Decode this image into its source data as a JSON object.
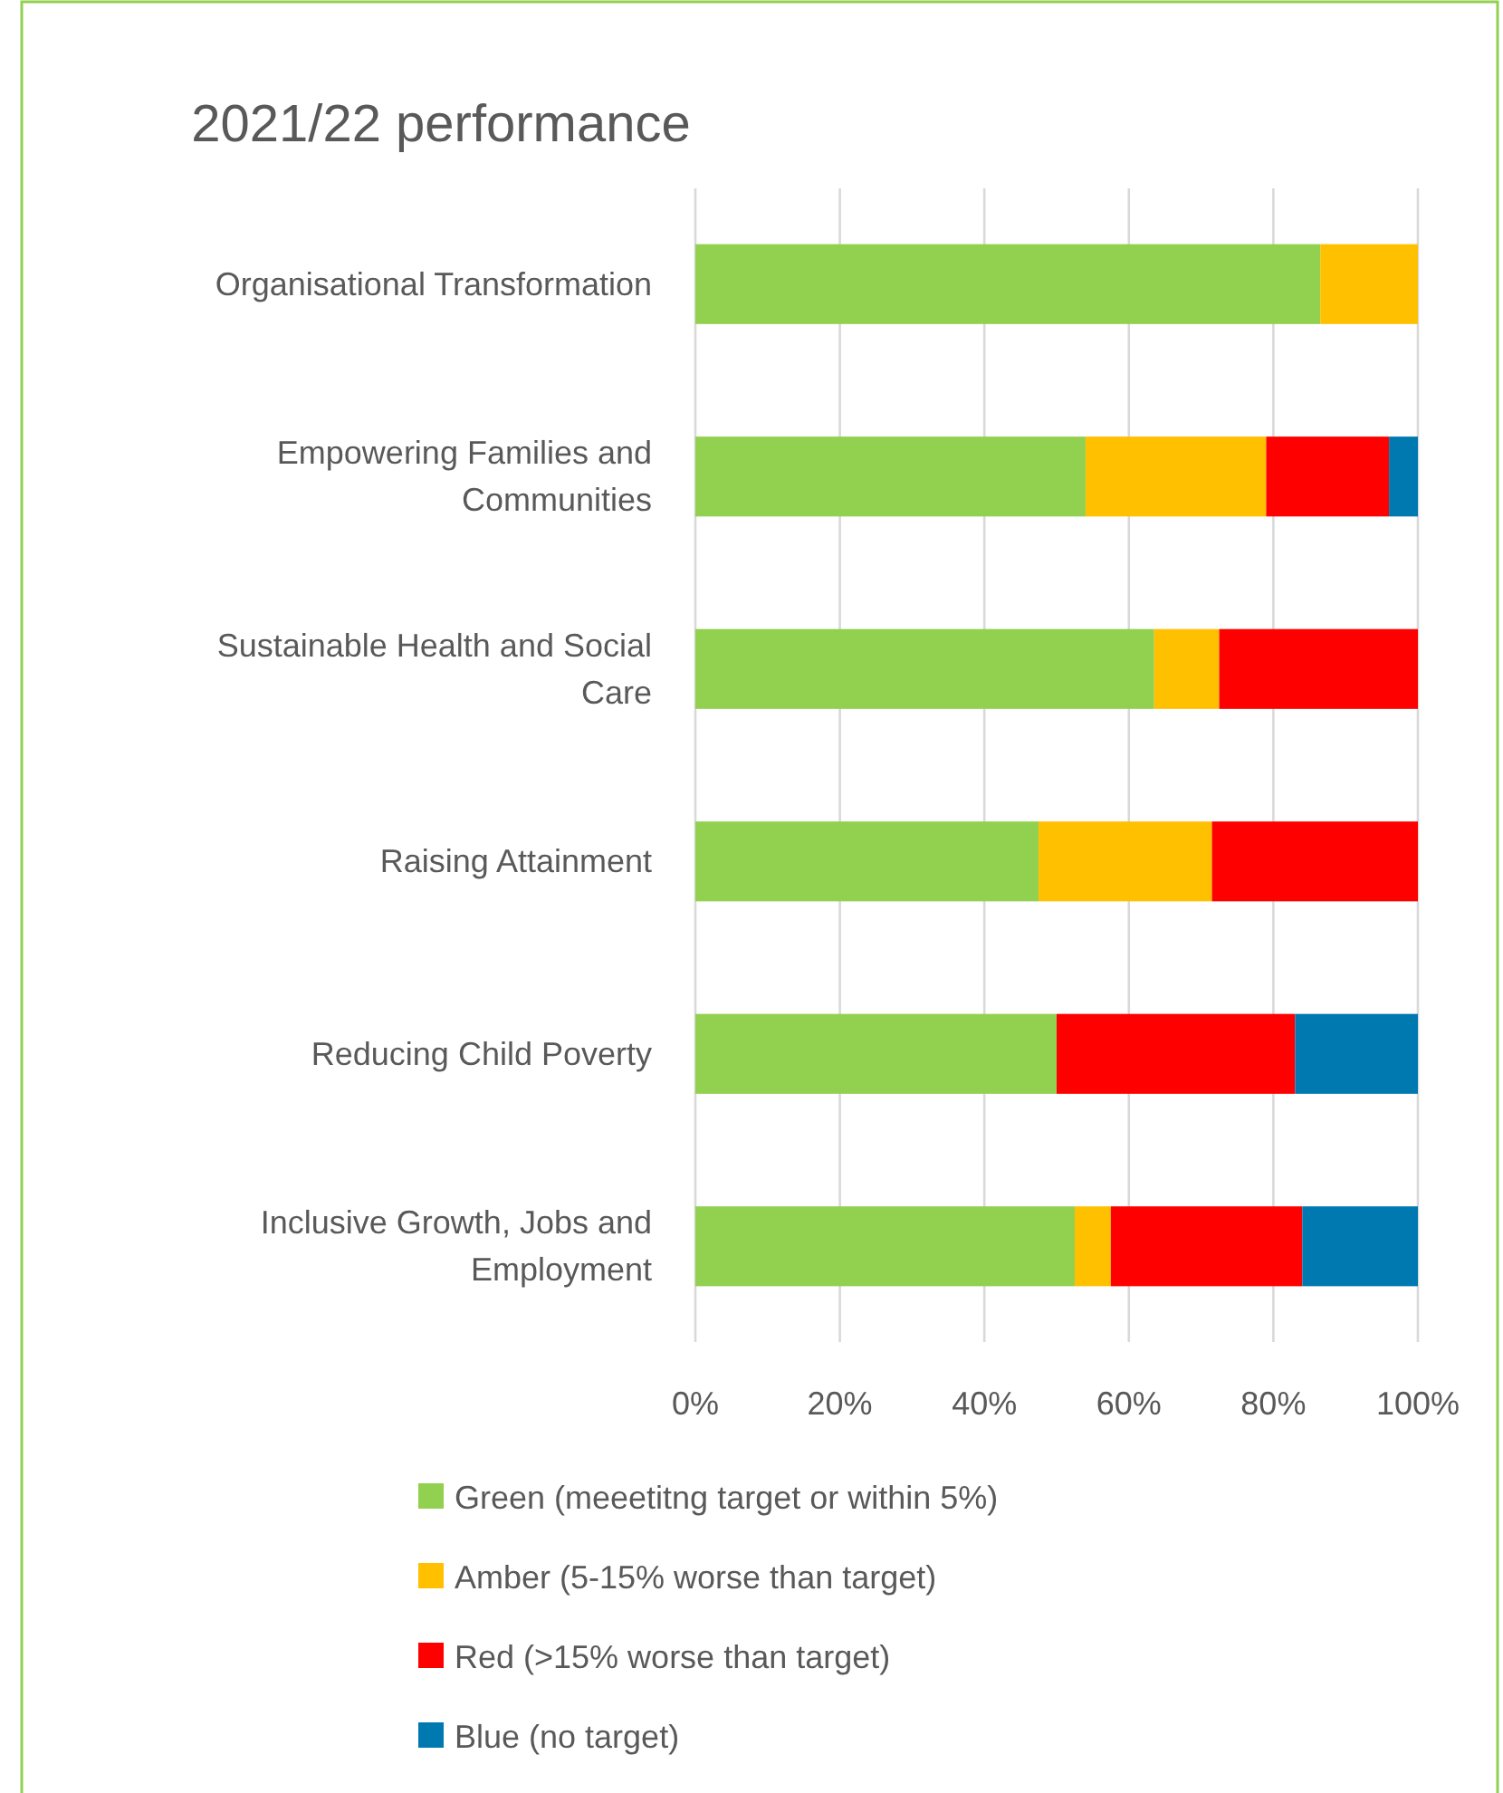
{
  "chart_data": {
    "type": "bar",
    "orientation": "horizontal",
    "stacked": true,
    "title": "2021/22 performance",
    "categories": [
      "Organisational Transformation",
      "Empowering Families and Communities",
      "Sustainable Health and Social Care",
      "Raising Attainment",
      "Reducing Child Poverty",
      "Inclusive Growth, Jobs and Employment"
    ],
    "series": [
      {
        "name": "Green (meeetitng target or within 5%)",
        "color": "#92d050",
        "values": [
          86.5,
          54,
          63.5,
          47.5,
          50,
          52.5
        ]
      },
      {
        "name": "Amber (5-15% worse than target)",
        "color": "#ffc000",
        "values": [
          13.5,
          25,
          9,
          24,
          0,
          5
        ]
      },
      {
        "name": "Red (>15% worse than target)",
        "color": "#ff0000",
        "values": [
          0,
          17,
          27.5,
          28.5,
          33,
          26.5
        ]
      },
      {
        "name": "Blue (no target)",
        "color": "#0079b0",
        "values": [
          0,
          4,
          0,
          0,
          17,
          16
        ]
      }
    ],
    "xlim": [
      0,
      100
    ],
    "xticks": [
      {
        "value": 0,
        "label": "0%"
      },
      {
        "value": 20,
        "label": "20%"
      },
      {
        "value": 40,
        "label": "40%"
      },
      {
        "value": 60,
        "label": "60%"
      },
      {
        "value": 80,
        "label": "80%"
      },
      {
        "value": 100,
        "label": "100%"
      }
    ],
    "grid": "x",
    "legend": "bottom"
  }
}
